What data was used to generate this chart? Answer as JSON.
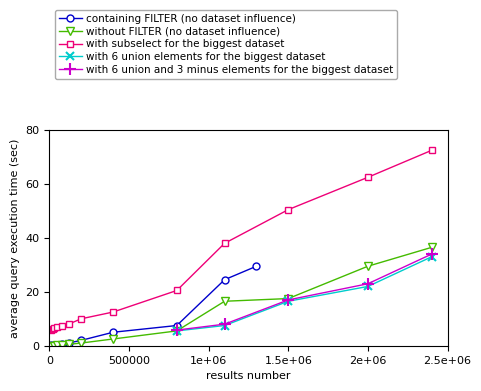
{
  "series": [
    {
      "label": "containing FILTER (no dataset influence)",
      "color": "#0000cc",
      "marker": "o",
      "markerfacecolor": "white",
      "x": [
        10000,
        30000,
        50000,
        80000,
        120000,
        200000,
        400000,
        800000,
        1100000,
        1300000
      ],
      "y": [
        0.15,
        0.2,
        0.4,
        0.6,
        1.0,
        2.0,
        5.0,
        7.5,
        24.5,
        29.5
      ]
    },
    {
      "label": "without FILTER (no dataset influence)",
      "color": "#44bb00",
      "marker": "v",
      "markerfacecolor": "white",
      "x": [
        10000,
        30000,
        50000,
        80000,
        120000,
        200000,
        400000,
        800000,
        1100000,
        1500000,
        2000000,
        2400000
      ],
      "y": [
        0.05,
        0.08,
        0.15,
        0.3,
        0.5,
        1.0,
        2.5,
        5.5,
        16.5,
        17.5,
        29.5,
        36.5
      ]
    },
    {
      "label": "with subselect for the biggest dataset",
      "color": "#ee0077",
      "marker": "s",
      "markerfacecolor": "white",
      "x": [
        10000,
        20000,
        30000,
        50000,
        80000,
        120000,
        200000,
        400000,
        800000,
        1100000,
        1500000,
        2000000,
        2400000
      ],
      "y": [
        6.0,
        6.2,
        6.5,
        7.0,
        7.5,
        8.0,
        10.0,
        12.5,
        20.5,
        38.0,
        50.5,
        62.5,
        72.5
      ]
    },
    {
      "label": "with 6 union elements for the biggest dataset",
      "color": "#00cccc",
      "marker": "x",
      "markerfacecolor": "#00cccc",
      "x": [
        800000,
        1100000,
        1500000,
        2000000,
        2400000
      ],
      "y": [
        5.5,
        7.5,
        16.5,
        22.0,
        33.0
      ]
    },
    {
      "label": "with 6 union and 3 minus elements for the biggest dataset",
      "color": "#cc00cc",
      "marker": "+",
      "markerfacecolor": "#cc00cc",
      "x": [
        800000,
        1100000,
        1500000,
        2000000,
        2400000
      ],
      "y": [
        5.8,
        8.0,
        17.0,
        23.0,
        34.0
      ]
    }
  ],
  "xlabel": "results number",
  "ylabel": "average query execution time (sec)",
  "xlim": [
    0,
    2500000
  ],
  "ylim": [
    0,
    80
  ],
  "yticks": [
    0,
    20,
    40,
    60,
    80
  ],
  "xticks": [
    0,
    500000,
    1000000,
    1500000,
    2000000,
    2500000
  ],
  "xticklabels": [
    "0",
    "500000",
    "1e+06",
    "1.5e+06",
    "2e+06",
    "2.5e+06"
  ],
  "figsize": [
    4.74,
    3.92
  ],
  "dpi": 100,
  "legend_fontsize": 7.5,
  "axis_fontsize": 8,
  "tick_fontsize": 8
}
